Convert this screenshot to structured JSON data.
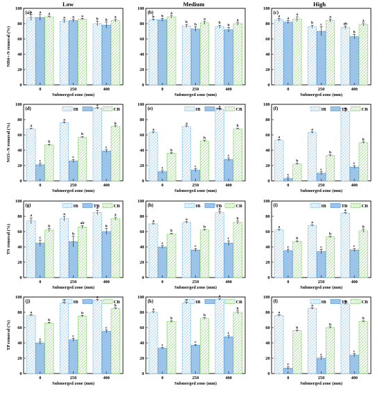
{
  "figure": {
    "column_titles": [
      "Low",
      "Medium",
      "High"
    ],
    "x_axis_label": "Submerged zone (mm)",
    "legend": [
      "IB",
      "TB",
      "CB"
    ]
  },
  "colors": {
    "IB": "#8fc4ea",
    "TB": "#5b9bd5",
    "TB_fill": "#9cc3e8",
    "CB": "#8fd17a",
    "frame": "#000000"
  },
  "chart_data": [
    {
      "panel": "(a)",
      "row": 0,
      "col": 0,
      "type": "bar",
      "categories": [
        "0",
        "250",
        "400"
      ],
      "ylabel": "NH4+-N removal (%)",
      "ylim": [
        0,
        100
      ],
      "yticks": [
        0,
        20,
        40,
        60,
        80,
        100
      ],
      "series": [
        {
          "name": "IB",
          "values": [
            88,
            83,
            80
          ],
          "errors": [
            4,
            2,
            3
          ],
          "letters": [
            "a",
            "a",
            "b"
          ]
        },
        {
          "name": "TB",
          "values": [
            88,
            84,
            78
          ],
          "errors": [
            4,
            2,
            4
          ],
          "letters": [
            "a",
            "a",
            "b"
          ]
        },
        {
          "name": "CB",
          "values": [
            89,
            86,
            84
          ],
          "errors": [
            1,
            1,
            2
          ],
          "letters": [
            "a",
            "a",
            "a"
          ]
        }
      ]
    },
    {
      "panel": "(b)",
      "row": 0,
      "col": 1,
      "type": "bar",
      "categories": [
        "0",
        "250",
        "400"
      ],
      "ylabel": "",
      "ylim": [
        0,
        100
      ],
      "yticks": [
        0,
        20,
        40,
        60,
        80,
        100
      ],
      "series": [
        {
          "name": "IB",
          "values": [
            85,
            77,
            76
          ],
          "errors": [
            1,
            2,
            2
          ],
          "letters": [
            "b",
            "b",
            "b"
          ]
        },
        {
          "name": "TB",
          "values": [
            85,
            73,
            72
          ],
          "errors": [
            2,
            3,
            3
          ],
          "letters": [
            "b",
            "b",
            "b"
          ]
        },
        {
          "name": "CB",
          "values": [
            89,
            81,
            80
          ],
          "errors": [
            2,
            2,
            2
          ],
          "letters": [
            "a",
            "a",
            "a"
          ]
        }
      ]
    },
    {
      "panel": "(c)",
      "row": 0,
      "col": 2,
      "type": "bar",
      "categories": [
        "0",
        "250",
        "400"
      ],
      "ylabel": "",
      "ylim": [
        0,
        100
      ],
      "yticks": [
        0,
        20,
        40,
        60,
        80,
        100
      ],
      "series": [
        {
          "name": "IB",
          "values": [
            85,
            76,
            75
          ],
          "errors": [
            2,
            2,
            2
          ],
          "letters": [
            "a",
            "b",
            "ab"
          ]
        },
        {
          "name": "TB",
          "values": [
            82,
            70,
            63
          ],
          "errors": [
            2,
            6,
            3
          ],
          "letters": [
            "a",
            "c",
            "b"
          ]
        },
        {
          "name": "CB",
          "values": [
            86,
            84,
            79
          ],
          "errors": [
            3,
            2,
            2
          ],
          "letters": [
            "a",
            "a",
            "a"
          ]
        }
      ]
    },
    {
      "panel": "(d)",
      "row": 1,
      "col": 0,
      "type": "bar",
      "categories": [
        "0",
        "250",
        "400"
      ],
      "ylabel": "NO3--N removal (%)",
      "ylim": [
        0,
        100
      ],
      "yticks": [
        0,
        20,
        40,
        60,
        80,
        100
      ],
      "series": [
        {
          "name": "IB",
          "values": [
            68,
            76,
            95
          ],
          "errors": [
            1,
            1,
            1
          ],
          "letters": [
            "a",
            "a",
            "a"
          ]
        },
        {
          "name": "TB",
          "values": [
            21,
            26,
            39
          ],
          "errors": [
            2,
            2,
            2
          ],
          "letters": [
            "c",
            "c",
            "c"
          ]
        },
        {
          "name": "CB",
          "values": [
            47,
            57,
            71
          ],
          "errors": [
            1,
            1,
            1
          ],
          "letters": [
            "b",
            "b",
            "b"
          ]
        }
      ]
    },
    {
      "panel": "(e)",
      "row": 1,
      "col": 1,
      "type": "bar",
      "categories": [
        "0",
        "250",
        "400"
      ],
      "ylabel": "",
      "ylim": [
        0,
        100
      ],
      "yticks": [
        0,
        20,
        40,
        60,
        80,
        100
      ],
      "series": [
        {
          "name": "IB",
          "values": [
            63,
            71,
            93
          ],
          "errors": [
            1,
            1,
            1
          ],
          "letters": [
            "a",
            "a",
            "a"
          ]
        },
        {
          "name": "TB",
          "values": [
            12,
            14,
            28
          ],
          "errors": [
            2,
            2,
            2
          ],
          "letters": [
            "c",
            "c",
            "c"
          ]
        },
        {
          "name": "CB",
          "values": [
            36,
            52,
            68
          ],
          "errors": [
            1,
            1,
            1
          ],
          "letters": [
            "b",
            "b",
            "b"
          ]
        }
      ]
    },
    {
      "panel": "(f)",
      "row": 1,
      "col": 2,
      "type": "bar",
      "categories": [
        "0",
        "250",
        "400"
      ],
      "ylabel": "",
      "ylim": [
        0,
        100
      ],
      "yticks": [
        0,
        20,
        40,
        60,
        80,
        100
      ],
      "series": [
        {
          "name": "IB",
          "values": [
            53,
            63,
            91
          ],
          "errors": [
            1,
            1,
            1
          ],
          "letters": [
            "a",
            "a",
            "a"
          ]
        },
        {
          "name": "TB",
          "values": [
            3,
            10,
            18
          ],
          "errors": [
            2,
            2,
            2
          ],
          "letters": [
            "c",
            "c",
            "c"
          ]
        },
        {
          "name": "CB",
          "values": [
            22,
            33,
            50
          ],
          "errors": [
            1,
            1,
            1
          ],
          "letters": [
            "b",
            "b",
            "b"
          ]
        }
      ]
    },
    {
      "panel": "(g)",
      "row": 2,
      "col": 0,
      "type": "bar",
      "categories": [
        "0",
        "250",
        "400"
      ],
      "ylabel": "TN removal (%)",
      "ylim": [
        0,
        100
      ],
      "yticks": [
        0,
        20,
        40,
        60,
        80,
        100
      ],
      "series": [
        {
          "name": "IB",
          "values": [
            74,
            77,
            85
          ],
          "errors": [
            4,
            3,
            3
          ],
          "letters": [
            "a",
            "a",
            "a"
          ]
        },
        {
          "name": "TB",
          "values": [
            45,
            47,
            60
          ],
          "errors": [
            4,
            7,
            4
          ],
          "letters": [
            "c",
            "b",
            "b"
          ]
        },
        {
          "name": "CB",
          "values": [
            62,
            66,
            77
          ],
          "errors": [
            2,
            2,
            2
          ],
          "letters": [
            "b",
            "ab",
            "a"
          ]
        }
      ]
    },
    {
      "panel": "(h)",
      "row": 2,
      "col": 1,
      "type": "bar",
      "categories": [
        "0",
        "250",
        "400"
      ],
      "ylabel": "",
      "ylim": [
        0,
        100
      ],
      "yticks": [
        0,
        20,
        40,
        60,
        80,
        100
      ],
      "series": [
        {
          "name": "IB",
          "values": [
            70,
            72,
            85
          ],
          "errors": [
            1,
            1,
            2
          ],
          "letters": [
            "a",
            "a",
            "a"
          ]
        },
        {
          "name": "TB",
          "values": [
            40,
            36,
            45
          ],
          "errors": [
            2,
            2,
            3
          ],
          "letters": [
            "c",
            "c",
            "c"
          ]
        },
        {
          "name": "CB",
          "values": [
            57,
            62,
            72
          ],
          "errors": [
            1,
            1,
            2
          ],
          "letters": [
            "b",
            "b",
            "b"
          ]
        }
      ]
    },
    {
      "panel": "(i)",
      "row": 2,
      "col": 2,
      "type": "bar",
      "categories": [
        "0",
        "250",
        "400"
      ],
      "ylabel": "",
      "ylim": [
        0,
        100
      ],
      "yticks": [
        0,
        20,
        40,
        60,
        80,
        100
      ],
      "series": [
        {
          "name": "IB",
          "values": [
            62,
            68,
            84
          ],
          "errors": [
            1,
            1,
            1
          ],
          "letters": [
            "a",
            "a",
            "a"
          ]
        },
        {
          "name": "TB",
          "values": [
            35,
            34,
            36
          ],
          "errors": [
            2,
            3,
            2
          ],
          "letters": [
            "c",
            "c",
            "c"
          ]
        },
        {
          "name": "CB",
          "values": [
            47,
            53,
            61
          ],
          "errors": [
            1,
            1,
            2
          ],
          "letters": [
            "b",
            "b",
            "b"
          ]
        }
      ]
    },
    {
      "panel": "(j)",
      "row": 3,
      "col": 0,
      "type": "bar",
      "categories": [
        "0",
        "250",
        "400"
      ],
      "ylabel": "TP removal (%)",
      "ylim": [
        0,
        100
      ],
      "yticks": [
        0,
        20,
        40,
        60,
        80,
        100
      ],
      "series": [
        {
          "name": "IB",
          "values": [
            76,
            92,
            96
          ],
          "errors": [
            1,
            1,
            1
          ],
          "letters": [
            "a",
            "a",
            "a"
          ]
        },
        {
          "name": "TB",
          "values": [
            40,
            44,
            55
          ],
          "errors": [
            2,
            2,
            2
          ],
          "letters": [
            "c",
            "c",
            "c"
          ]
        },
        {
          "name": "CB",
          "values": [
            66,
            75,
            85
          ],
          "errors": [
            1,
            1,
            1
          ],
          "letters": [
            "b",
            "b",
            "b"
          ]
        }
      ]
    },
    {
      "panel": "(k)",
      "row": 3,
      "col": 1,
      "type": "bar",
      "categories": [
        "0",
        "250",
        "400"
      ],
      "ylabel": "",
      "ylim": [
        0,
        100
      ],
      "yticks": [
        0,
        20,
        40,
        60,
        80,
        100
      ],
      "series": [
        {
          "name": "IB",
          "values": [
            80,
            92,
            97
          ],
          "errors": [
            1,
            1,
            1
          ],
          "letters": [
            "a",
            "a",
            "a"
          ]
        },
        {
          "name": "TB",
          "values": [
            33,
            37,
            48
          ],
          "errors": [
            1,
            1,
            2
          ],
          "letters": [
            "c",
            "c",
            "c"
          ]
        },
        {
          "name": "CB",
          "values": [
            68,
            72,
            80
          ],
          "errors": [
            1,
            1,
            2
          ],
          "letters": [
            "b",
            "b",
            "b"
          ]
        }
      ]
    },
    {
      "panel": "(l)",
      "row": 3,
      "col": 2,
      "type": "bar",
      "categories": [
        "0",
        "250",
        "400"
      ],
      "ylabel": "",
      "ylim": [
        0,
        100
      ],
      "yticks": [
        0,
        20,
        40,
        60,
        80,
        100
      ],
      "series": [
        {
          "name": "IB",
          "values": [
            76,
            85,
            91
          ],
          "errors": [
            1,
            1,
            1
          ],
          "letters": [
            "a",
            "a",
            "a"
          ]
        },
        {
          "name": "TB",
          "values": [
            7,
            20,
            24
          ],
          "errors": [
            2,
            2,
            2
          ],
          "letters": [
            "c",
            "c",
            "c"
          ]
        },
        {
          "name": "CB",
          "values": [
            56,
            60,
            68
          ],
          "errors": [
            1,
            1,
            1
          ],
          "letters": [
            "b",
            "b",
            "b"
          ]
        }
      ]
    }
  ]
}
